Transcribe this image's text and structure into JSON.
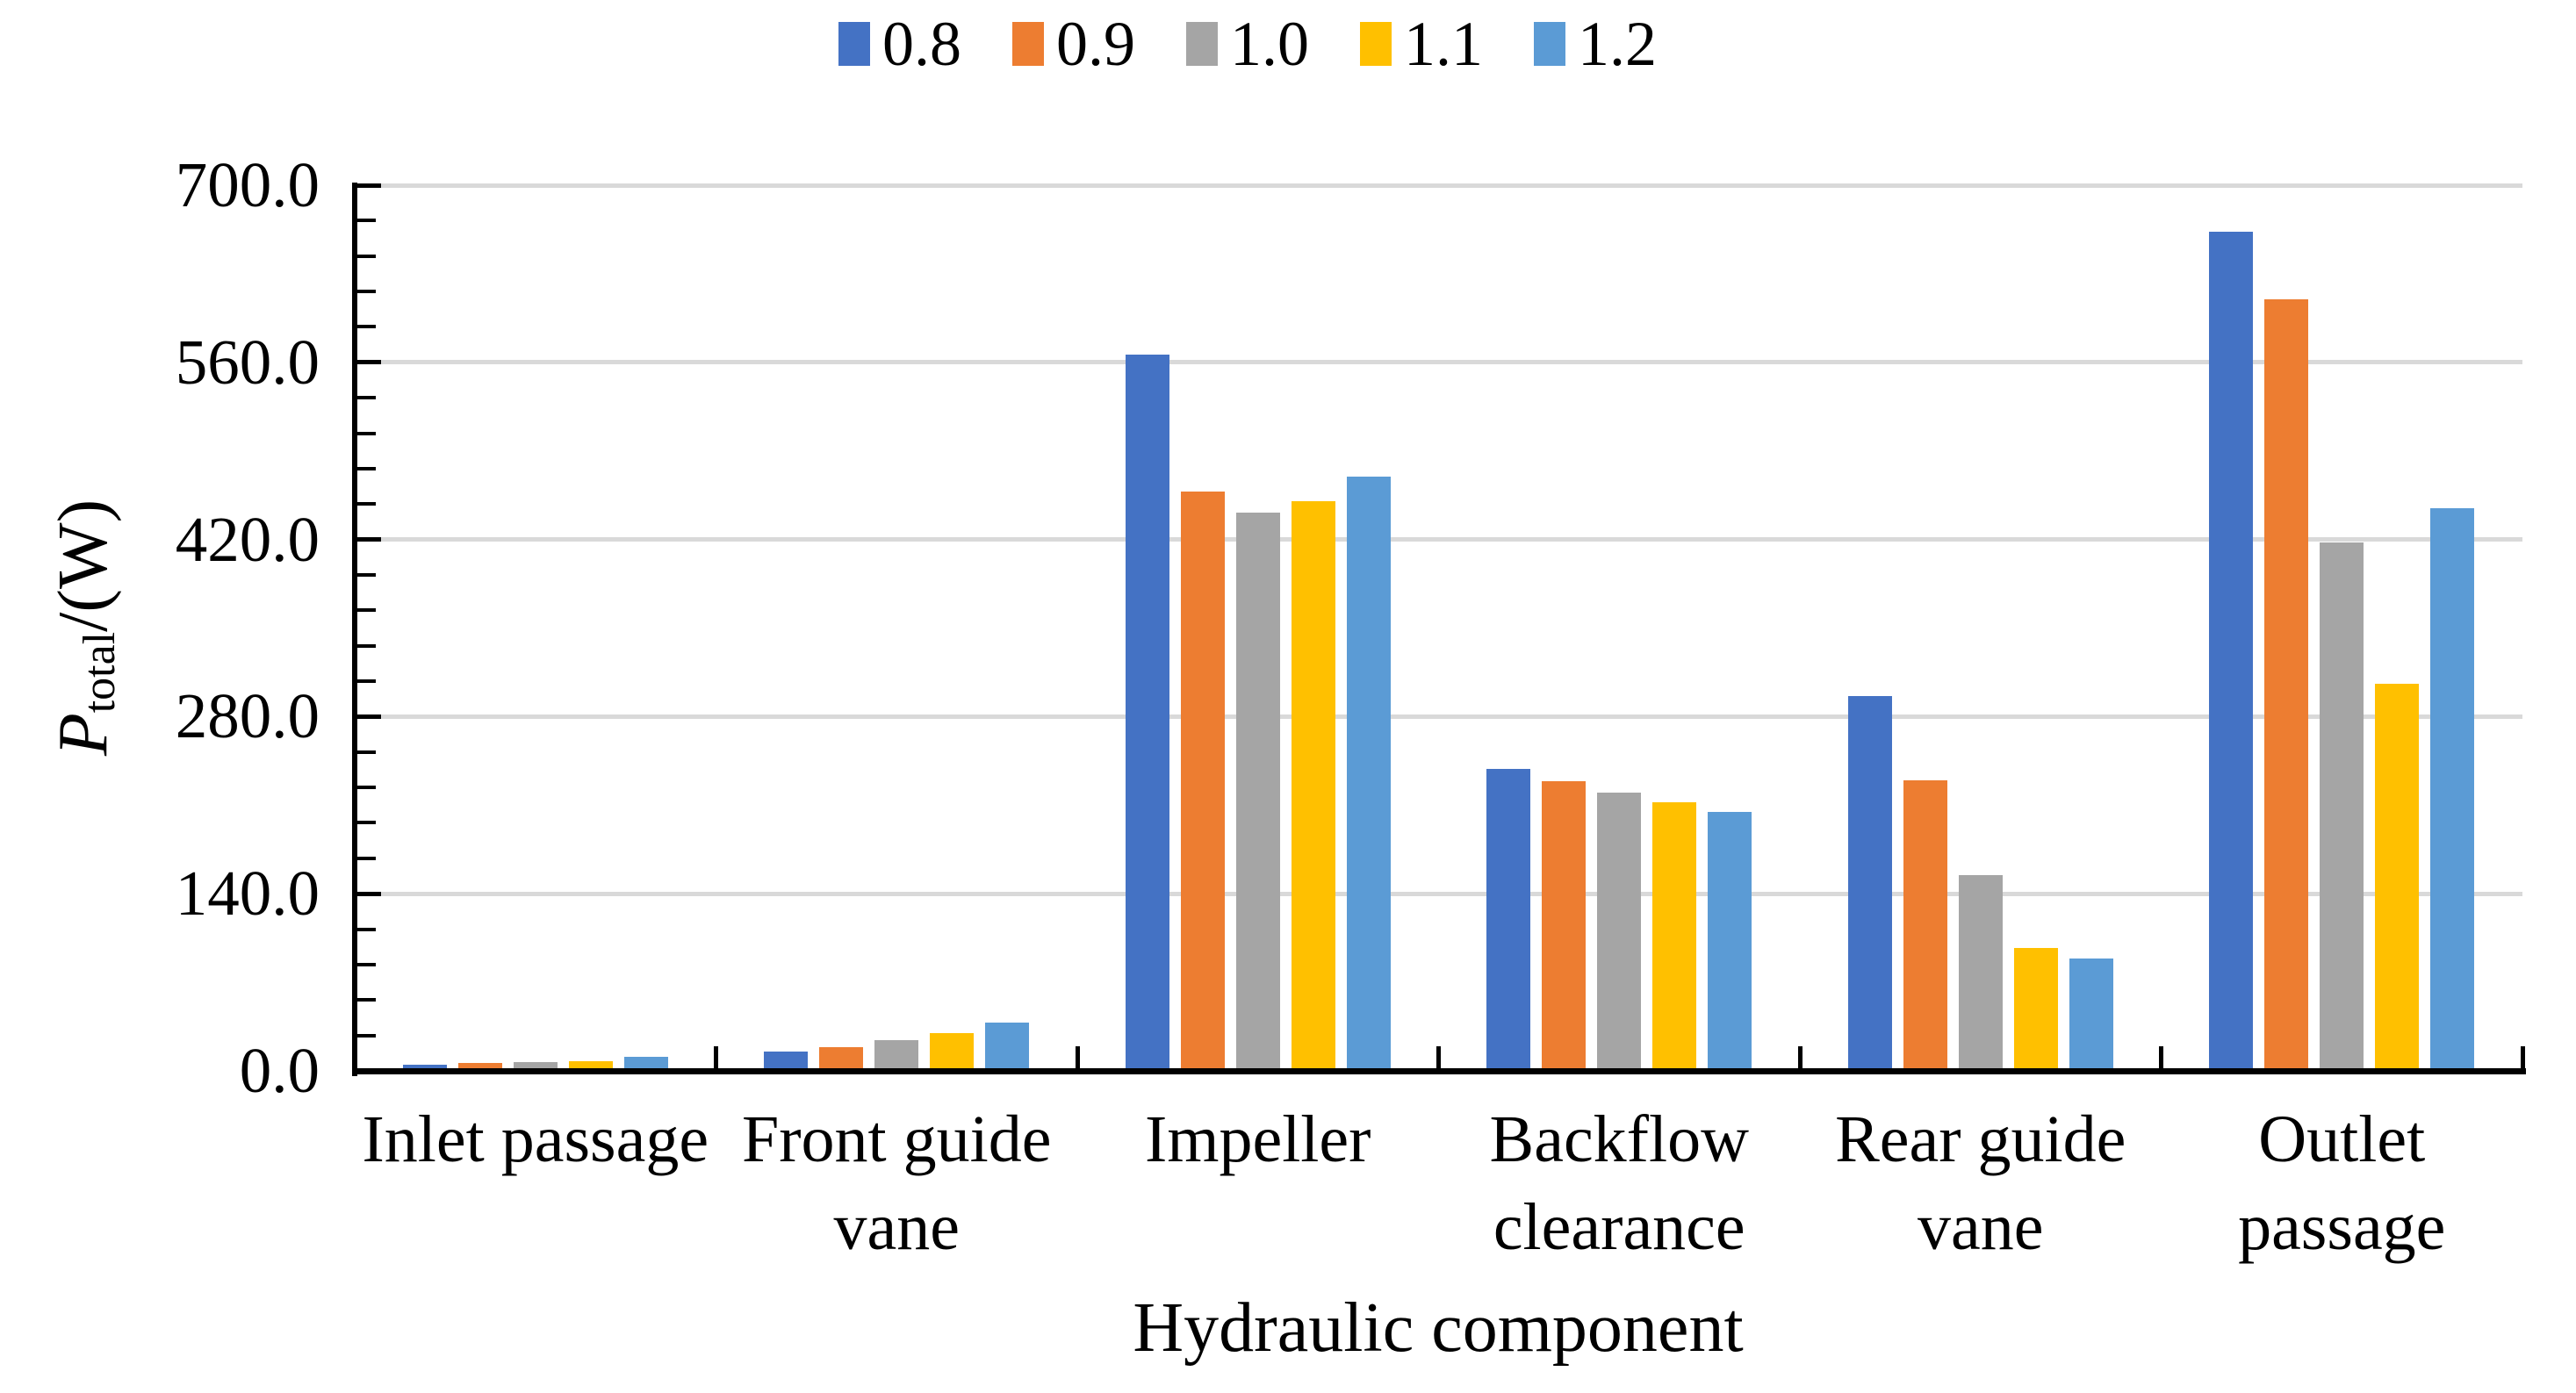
{
  "chart_data": {
    "type": "bar",
    "title": "",
    "categories": [
      "Inlet passage",
      "Front guide\nvane",
      "Impeller",
      "Backflow\nclearance",
      "Rear guide\nvane",
      "Outlet\npassage"
    ],
    "series": [
      {
        "name": "0.8",
        "color": "#4472C4",
        "values": [
          5,
          15,
          566,
          239,
          296,
          663
        ]
      },
      {
        "name": "0.9",
        "color": "#ED7D31",
        "values": [
          6,
          19,
          458,
          229,
          230,
          610
        ]
      },
      {
        "name": "1.0",
        "color": "#A5A5A5",
        "values": [
          7,
          24,
          441,
          220,
          155,
          418
        ]
      },
      {
        "name": "1.1",
        "color": "#FFC000",
        "values": [
          8,
          30,
          450,
          212,
          97,
          306
        ]
      },
      {
        "name": "1.2",
        "color": "#5B9BD5",
        "values": [
          11,
          38,
          470,
          205,
          89,
          445
        ]
      }
    ],
    "xlabel": "Hydraulic component",
    "ylabel_parts": {
      "symbol": "P",
      "subscript": "total",
      "unit": " /(W)"
    },
    "ylim": [
      0,
      700
    ],
    "yticks": [
      0,
      140,
      280,
      420,
      560,
      700
    ],
    "ytick_labels": [
      "0.0",
      "140.0",
      "280.0",
      "420.0",
      "560.0",
      "700.0"
    ],
    "minor_tick_step": 28,
    "grid": "horizontal-major-only",
    "legend_position": "top-center",
    "axis_color": "#000000",
    "gridline_color": "#D9D9D9"
  }
}
